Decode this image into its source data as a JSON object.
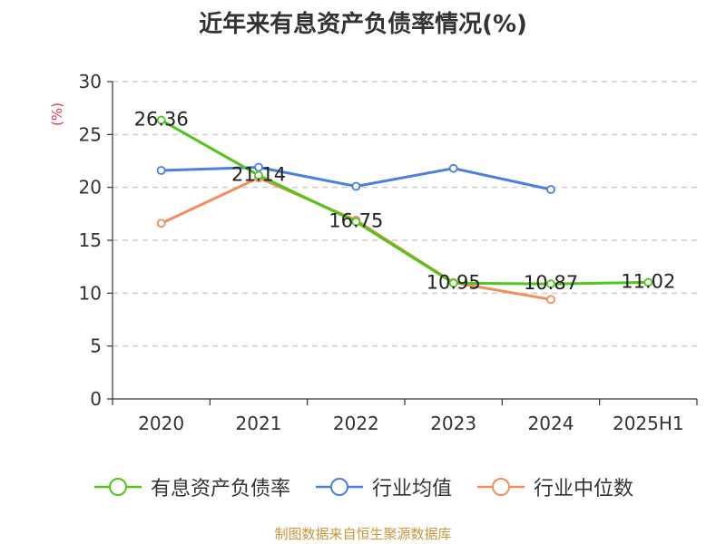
{
  "chart_data": {
    "type": "line",
    "title": "近年来有息资产负债率情况(%)",
    "ylabel": "(%)",
    "xlabel": "",
    "categories": [
      "2020",
      "2021",
      "2022",
      "2023",
      "2024",
      "2025H1"
    ],
    "ylim": [
      0,
      30
    ],
    "yticks": [
      0,
      5,
      10,
      15,
      20,
      25,
      30
    ],
    "grid": true,
    "legend_position": "bottom",
    "series": [
      {
        "name": "有息资产负债率",
        "color": "#52c41a",
        "show_labels": true,
        "values": [
          26.36,
          21.14,
          16.75,
          10.95,
          10.87,
          11.02
        ],
        "labels": [
          "26.36",
          "21.14",
          "16.75",
          "10.95",
          "10.87",
          "11.02"
        ]
      },
      {
        "name": "行业均值",
        "color": "#4a7fde",
        "show_labels": false,
        "values": [
          21.6,
          21.9,
          20.1,
          21.8,
          19.8,
          null
        ]
      },
      {
        "name": "行业中位数",
        "color": "#f28e5c",
        "show_labels": false,
        "values": [
          16.6,
          20.9,
          16.9,
          11.0,
          9.4,
          null
        ]
      }
    ],
    "source": "制图数据来自恒生聚源数据库"
  }
}
